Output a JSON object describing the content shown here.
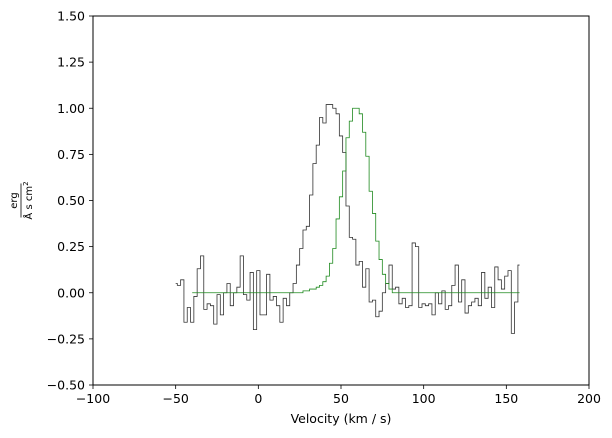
{
  "chart_data": {
    "type": "line",
    "title": "",
    "xlabel": "Velocity (km / s)",
    "ylabel": {
      "numerator": "erg",
      "denominator_main": "Å s cm",
      "denominator_sup": "2"
    },
    "xlim": [
      -100,
      200
    ],
    "ylim": [
      -0.5,
      1.5
    ],
    "xticks": [
      -100,
      -50,
      0,
      50,
      100,
      150,
      200
    ],
    "xtick_labels": [
      "−100",
      "−50",
      "0",
      "50",
      "100",
      "150",
      "200"
    ],
    "yticks": [
      -0.5,
      -0.25,
      0.0,
      0.25,
      0.5,
      0.75,
      1.0,
      1.25,
      1.5
    ],
    "ytick_labels": [
      "−0.50",
      "−0.25",
      "0.00",
      "0.25",
      "0.50",
      "0.75",
      "1.00",
      "1.25",
      "1.50"
    ],
    "grid": false,
    "legend": "none",
    "series": [
      {
        "style": "step",
        "color": "#333333",
        "x_start": -50,
        "x_step": 2,
        "values": [
          0.05,
          0.04,
          0.07,
          -0.16,
          -0.08,
          -0.16,
          -0.02,
          0.13,
          0.2,
          -0.09,
          -0.06,
          -0.07,
          -0.17,
          -0.01,
          -0.12,
          0.0,
          0.05,
          -0.07,
          0.0,
          0.03,
          0.2,
          -0.01,
          -0.04,
          0.11,
          -0.2,
          0.12,
          -0.12,
          -0.12,
          0.1,
          -0.04,
          -0.02,
          -0.07,
          -0.16,
          -0.03,
          -0.07,
          0.0,
          0.05,
          0.15,
          0.24,
          0.34,
          0.36,
          0.53,
          0.7,
          0.8,
          0.95,
          0.92,
          1.02,
          1.02,
          1.0,
          0.97,
          0.85,
          0.76,
          0.47,
          0.3,
          0.29,
          0.15,
          0.17,
          0.03,
          0.13,
          -0.05,
          -0.04,
          -0.13,
          -0.1,
          0.0,
          0.05,
          0.15,
          0.02,
          0.03,
          -0.06,
          -0.03,
          -0.08,
          -0.07,
          0.27,
          0.25,
          -0.08,
          -0.06,
          -0.07,
          -0.06,
          -0.12,
          0.0,
          -0.06,
          0.01,
          -0.09,
          -0.07,
          0.04,
          0.15,
          -0.05,
          0.07,
          -0.11,
          -0.07,
          -0.05,
          -0.03,
          -0.07,
          0.11,
          -0.03,
          0.03,
          -0.08,
          0.14,
          0.07,
          0.02,
          0.09,
          0.12,
          -0.22,
          -0.05,
          0.15
        ]
      },
      {
        "style": "step",
        "color": "#1f8a1f",
        "x_start": -40,
        "x_step": 2,
        "values": [
          0.0,
          0.0,
          0.0,
          0.0,
          0.0,
          0.0,
          0.0,
          0.0,
          0.0,
          0.0,
          0.0,
          0.0,
          0.0,
          0.0,
          0.0,
          0.0,
          0.0,
          0.0,
          0.0,
          0.0,
          0.0,
          0.0,
          0.0,
          0.0,
          0.0,
          0.0,
          0.0,
          0.0,
          0.0,
          0.0,
          0.0,
          0.0,
          0.0,
          0.0,
          0.01,
          0.01,
          0.02,
          0.02,
          0.03,
          0.04,
          0.06,
          0.09,
          0.16,
          0.24,
          0.4,
          0.52,
          0.66,
          0.84,
          0.93,
          1.0,
          1.0,
          0.97,
          0.87,
          0.74,
          0.55,
          0.43,
          0.28,
          0.18,
          0.1,
          0.05,
          0.02,
          0.0,
          0.0,
          0.0,
          0.0,
          0.0,
          0.0,
          0.0,
          0.0,
          0.0,
          0.0,
          0.0,
          0.0,
          0.0,
          0.0,
          0.0,
          0.0,
          0.0,
          0.0,
          0.0,
          0.0,
          0.0,
          0.0,
          0.0,
          0.0,
          0.0,
          0.0,
          0.0,
          0.0,
          0.0,
          0.0,
          0.0,
          0.0,
          0.0,
          0.0,
          0.0,
          0.0,
          0.0,
          0.0,
          0.0
        ]
      }
    ]
  }
}
